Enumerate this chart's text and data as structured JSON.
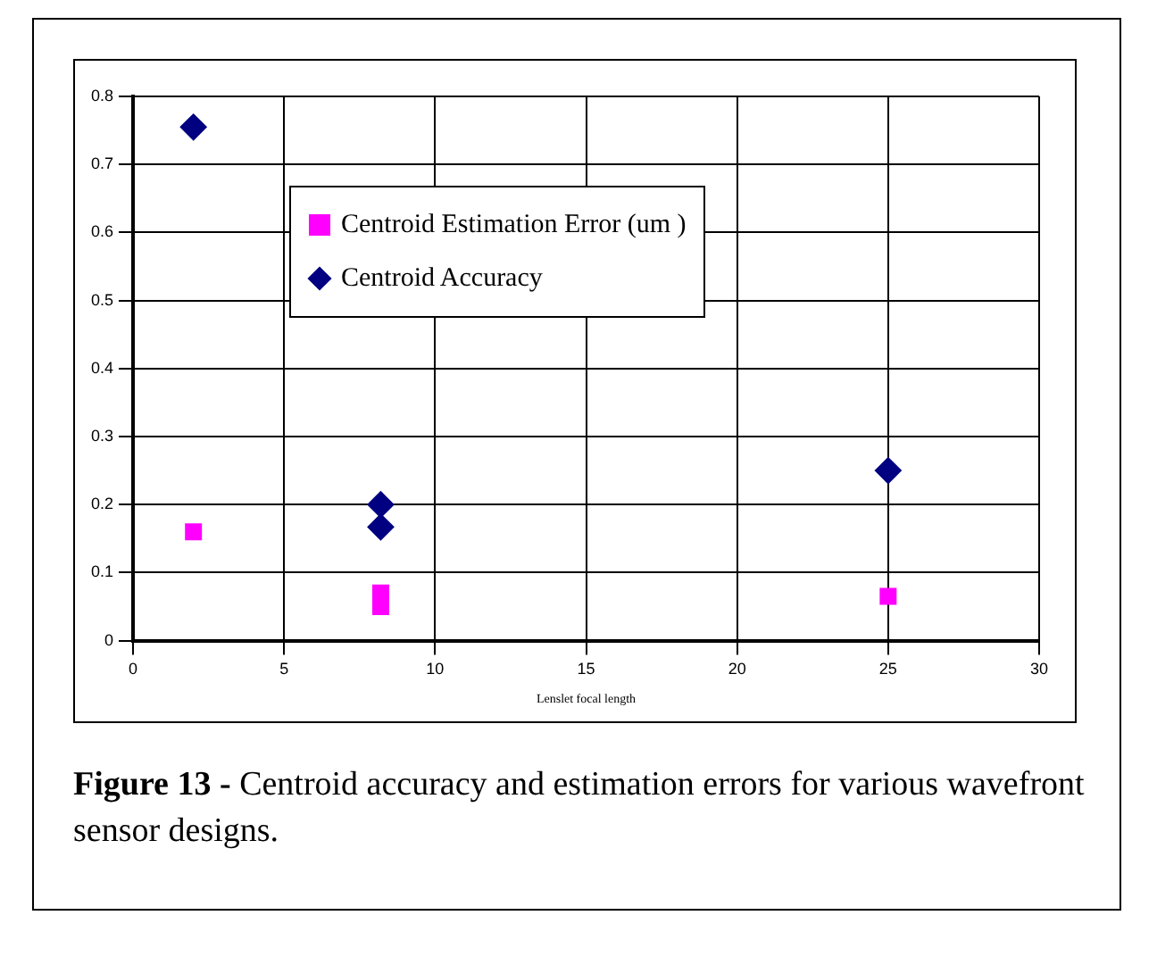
{
  "chart_data": {
    "type": "scatter",
    "xlabel": "Lenslet focal length",
    "xlim": [
      0,
      30
    ],
    "xticks": [
      0,
      5,
      10,
      15,
      20,
      25,
      30
    ],
    "ylim": [
      0,
      0.8
    ],
    "yticks": [
      0,
      0.1,
      0.2,
      0.3,
      0.4,
      0.5,
      0.6,
      0.7,
      0.8
    ],
    "grid": true,
    "legend": "top",
    "series": [
      {
        "name": "Centroid Estimation Error (um )",
        "color": "#ff00ff",
        "marker": "square",
        "x": [
          2,
          8.2,
          8.2,
          25
        ],
        "values": [
          0.16,
          0.07,
          0.05,
          0.065
        ]
      },
      {
        "name": "Centroid Accuracy",
        "color": "#000080",
        "marker": "diamond",
        "x": [
          2,
          8.2,
          8.2,
          25
        ],
        "values": [
          0.755,
          0.2,
          0.167,
          0.25
        ]
      }
    ],
    "annotations": [
      "Figure 13 -",
      "Centroid accuracy and estimation errors for various wavefront sensor designs."
    ]
  }
}
